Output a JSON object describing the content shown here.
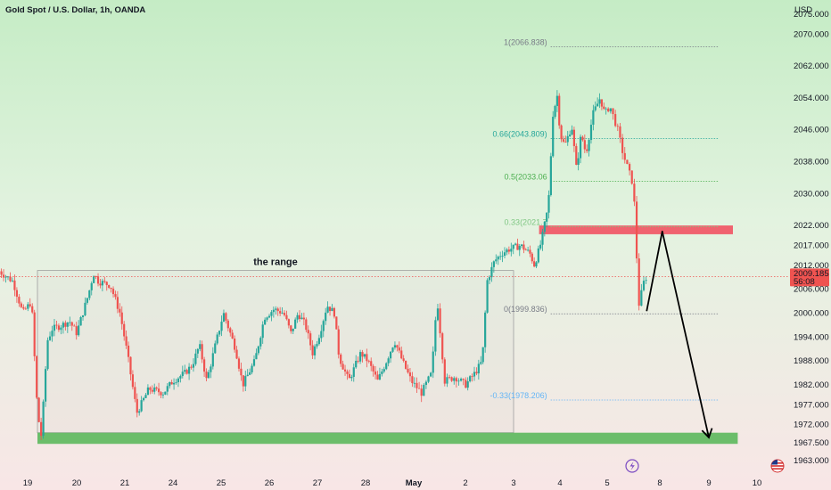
{
  "header": {
    "title": "Gold Spot / U.S. Dollar, 1h, OANDA",
    "currency": "USD"
  },
  "colors": {
    "up": "#26a69a",
    "down": "#ef5350",
    "bg_top": "#c5ecc5",
    "bg_bottom": "#f8e6e6",
    "zone_support": "#5cb85c",
    "zone_resistance": "#f05b68"
  },
  "chart_data": {
    "type": "candlestick",
    "title": "Gold Spot / U.S. Dollar, 1h, OANDA",
    "ylim": [
      1963,
      2075
    ],
    "y_ticks": [
      {
        "v": 2075,
        "label": "2075.000"
      },
      {
        "v": 2070,
        "label": "2070.000"
      },
      {
        "v": 2062,
        "label": "2062.000"
      },
      {
        "v": 2054,
        "label": "2054.000"
      },
      {
        "v": 2046,
        "label": "2046.000"
      },
      {
        "v": 2038,
        "label": "2038.000"
      },
      {
        "v": 2030,
        "label": "2030.000"
      },
      {
        "v": 2022,
        "label": "2022.000"
      },
      {
        "v": 2017,
        "label": "2017.000"
      },
      {
        "v": 2012,
        "label": "2012.000"
      },
      {
        "v": 2006,
        "label": "2006.000"
      },
      {
        "v": 2000,
        "label": "2000.000"
      },
      {
        "v": 1994,
        "label": "1994.000"
      },
      {
        "v": 1988,
        "label": "1988.000"
      },
      {
        "v": 1982,
        "label": "1982.000"
      },
      {
        "v": 1977,
        "label": "1977.000"
      },
      {
        "v": 1972,
        "label": "1972.000"
      },
      {
        "v": 1967.5,
        "label": "1967.500"
      },
      {
        "v": 1963,
        "label": "1963.000"
      }
    ],
    "x_ticks": [
      {
        "t": 0,
        "label": "19"
      },
      {
        "t": 1,
        "label": "20"
      },
      {
        "t": 2,
        "label": "21"
      },
      {
        "t": 3,
        "label": "24"
      },
      {
        "t": 4,
        "label": "25"
      },
      {
        "t": 5,
        "label": "26"
      },
      {
        "t": 6,
        "label": "27"
      },
      {
        "t": 7,
        "label": "28"
      },
      {
        "t": 8,
        "label": "May"
      },
      {
        "t": 9,
        "label": "2"
      },
      {
        "t": 10,
        "label": "3"
      },
      {
        "t": 11,
        "label": "4"
      },
      {
        "t": 12,
        "label": "5"
      },
      {
        "t": 13,
        "label": "8"
      },
      {
        "t": 14,
        "label": "9"
      },
      {
        "t": 15,
        "label": "10"
      }
    ],
    "price_anchors": [
      [
        -0.58,
        2010.5
      ],
      [
        -0.3,
        2008
      ],
      [
        -0.1,
        2000
      ],
      [
        0.08,
        2003
      ],
      [
        0.2,
        1975
      ],
      [
        0.28,
        1969
      ],
      [
        0.4,
        1993
      ],
      [
        0.5,
        1996
      ],
      [
        0.7,
        1997
      ],
      [
        0.85,
        1998
      ],
      [
        1.0,
        1995
      ],
      [
        1.25,
        2005
      ],
      [
        1.35,
        2010
      ],
      [
        1.45,
        2008
      ],
      [
        1.7,
        2007
      ],
      [
        1.9,
        2000
      ],
      [
        2.05,
        1990
      ],
      [
        2.25,
        1975
      ],
      [
        2.5,
        1981
      ],
      [
        2.8,
        1980
      ],
      [
        3.0,
        1983
      ],
      [
        3.25,
        1985
      ],
      [
        3.4,
        1987
      ],
      [
        3.55,
        1992
      ],
      [
        3.7,
        1983
      ],
      [
        3.9,
        1993
      ],
      [
        4.05,
        2000
      ],
      [
        4.3,
        1991
      ],
      [
        4.45,
        1982
      ],
      [
        4.7,
        1988
      ],
      [
        4.9,
        1999
      ],
      [
        5.1,
        2001
      ],
      [
        5.3,
        2000
      ],
      [
        5.45,
        1995
      ],
      [
        5.6,
        2000
      ],
      [
        5.75,
        1997
      ],
      [
        5.9,
        1990
      ],
      [
        6.05,
        1995
      ],
      [
        6.2,
        2002
      ],
      [
        6.35,
        2000
      ],
      [
        6.45,
        1989
      ],
      [
        6.65,
        1983
      ],
      [
        6.9,
        1990
      ],
      [
        7.05,
        1988
      ],
      [
        7.25,
        1983
      ],
      [
        7.4,
        1987
      ],
      [
        7.6,
        1993
      ],
      [
        7.8,
        1987
      ],
      [
        7.95,
        1983
      ],
      [
        8.15,
        1980
      ],
      [
        8.35,
        1985
      ],
      [
        8.45,
        2004
      ],
      [
        8.6,
        1983
      ],
      [
        8.8,
        1984
      ],
      [
        9.0,
        1982
      ],
      [
        9.2,
        1985
      ],
      [
        9.35,
        1988
      ],
      [
        9.45,
        2008
      ],
      [
        9.6,
        2013
      ],
      [
        9.75,
        2015
      ],
      [
        9.9,
        2016
      ],
      [
        10.15,
        2017
      ],
      [
        10.35,
        2015
      ],
      [
        10.45,
        2012
      ],
      [
        10.6,
        2018
      ],
      [
        10.75,
        2027
      ],
      [
        10.85,
        2050
      ],
      [
        10.95,
        2055
      ],
      [
        11.0,
        2045
      ],
      [
        11.1,
        2042
      ],
      [
        11.25,
        2047
      ],
      [
        11.35,
        2036
      ],
      [
        11.45,
        2045
      ],
      [
        11.55,
        2040
      ],
      [
        11.7,
        2050
      ],
      [
        11.85,
        2054
      ],
      [
        11.95,
        2050
      ],
      [
        12.05,
        2052
      ],
      [
        12.2,
        2046
      ],
      [
        12.3,
        2040
      ],
      [
        12.4,
        2036
      ],
      [
        12.5,
        2032
      ],
      [
        12.6,
        2002
      ],
      [
        12.7,
        2008
      ],
      [
        12.75,
        2009.185
      ]
    ],
    "y_range": {
      "box_top": 2010.7,
      "box_bottom": 1970.0,
      "label": "the range",
      "t_start": 0.2,
      "t_end": 10.0
    },
    "support_zone": {
      "y_top": 1970,
      "y_bottom": 1967.2,
      "t_start": 0.2,
      "t_end": 14.6
    },
    "resistance_zone": {
      "y_top": 2022,
      "y_bottom": 2019.8,
      "t_start": 10.55,
      "t_end": 14.5
    },
    "fib_levels": [
      {
        "label": "1(2066.838)",
        "y": 2066.838,
        "color": "#787b86"
      },
      {
        "label": "0.66(2043.809)",
        "y": 2043.809,
        "color": "#26a69a"
      },
      {
        "label": "0.5(2033.06",
        "y": 2033.06,
        "color": "#4caf50"
      },
      {
        "label": "0.33(2021.7",
        "y": 2021.7,
        "color": "#81c784"
      },
      {
        "label": "0(1999.836)",
        "y": 1999.836,
        "color": "#787b86"
      },
      {
        "label": "-0.33(1978.206)",
        "y": 1978.206,
        "color": "#64b5f6"
      }
    ],
    "fib_t_start": 10.8,
    "fib_t_end": 14.2,
    "current_price": {
      "price": "2009.185",
      "time": "56:08",
      "value": 2009.185
    },
    "arrow_path": [
      [
        12.75,
        2000.5
      ],
      [
        13.05,
        2020.5
      ],
      [
        14.0,
        1968.8
      ]
    ]
  }
}
